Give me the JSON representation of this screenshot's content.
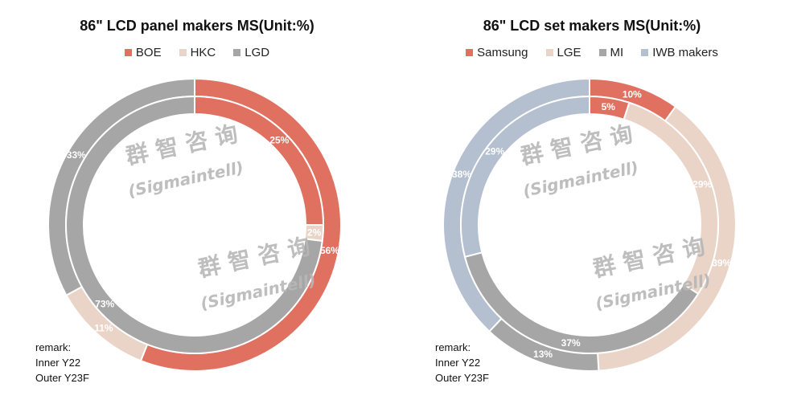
{
  "chart_data": [
    {
      "type": "pie",
      "title": "86\" LCD panel makers MS(Unit:%)",
      "legend_position": "top",
      "categories": [
        "BOE",
        "HKC",
        "LGD"
      ],
      "colors": [
        "#e07060",
        "#ead4c7",
        "#a6a6a6"
      ],
      "series": [
        {
          "ring": "outer",
          "values": [
            56,
            11,
            33
          ],
          "labels": [
            "56%",
            "11%",
            "33%"
          ]
        },
        {
          "ring": "inner",
          "values": [
            25,
            2,
            73
          ],
          "labels": [
            "25%",
            "2%",
            "73%"
          ]
        }
      ],
      "remark": [
        "remark:",
        "Inner Y22",
        "Outer Y23F"
      ]
    },
    {
      "type": "pie",
      "title": "86\" LCD set makers MS(Unit:%)",
      "legend_position": "top",
      "categories": [
        "Samsung",
        "LGE",
        "MI",
        "IWB makers"
      ],
      "colors": [
        "#e07060",
        "#ead4c7",
        "#a6a6a6",
        "#b4bfd0"
      ],
      "series": [
        {
          "ring": "outer",
          "values": [
            10,
            39,
            13,
            38
          ],
          "labels": [
            "10%",
            "39%",
            "13%",
            "38%"
          ]
        },
        {
          "ring": "inner",
          "values": [
            5,
            29,
            37,
            29
          ],
          "labels": [
            "5%",
            "29%",
            "37%",
            "29%"
          ]
        }
      ],
      "remark": [
        "remark:",
        "Inner Y22",
        "Outer Y23F"
      ]
    }
  ],
  "watermark": {
    "chinese": "群 智 咨 询",
    "latin": "(Sigmaintell)"
  }
}
